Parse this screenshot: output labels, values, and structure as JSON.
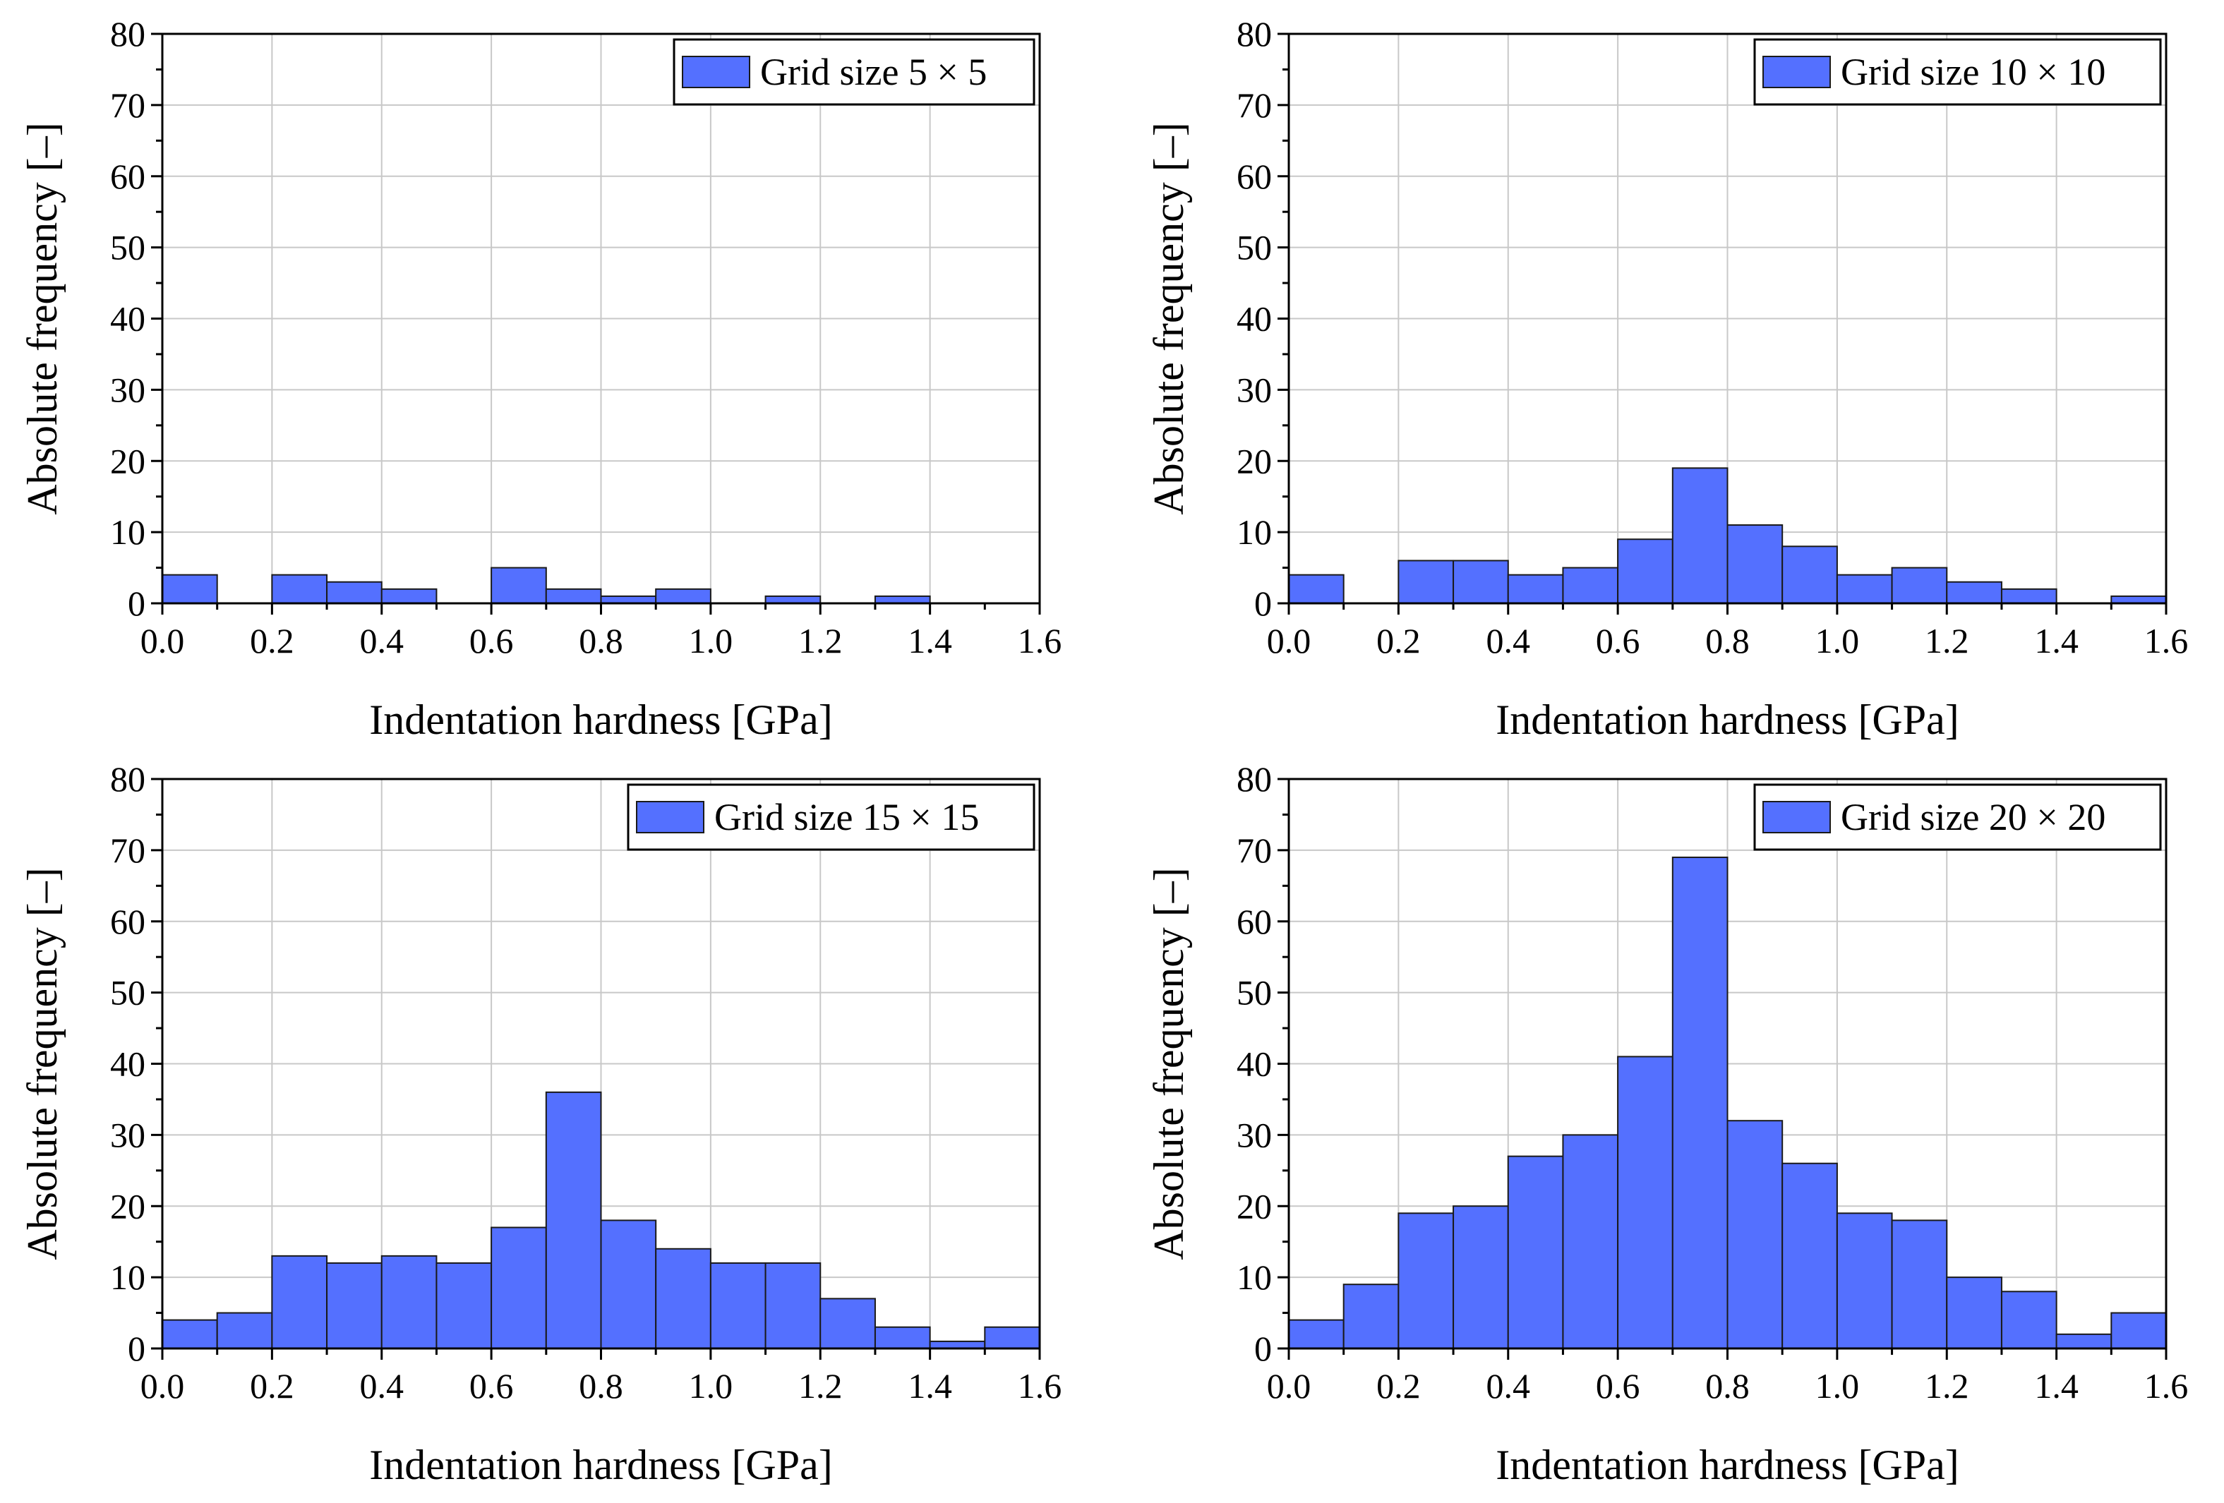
{
  "figure": {
    "bar_color": "#5470ff",
    "bar_edge_color": "#1a1a1a",
    "grid_color": "#c8c8c8"
  },
  "chart_data": [
    {
      "type": "bar",
      "name": "grid-5x5",
      "legend": "Grid size 5 × 5",
      "xlabel": "Indentation hardness [GPa]",
      "ylabel": "Absolute frequency [–]",
      "xlim": [
        0,
        1.6
      ],
      "ylim": [
        0,
        80
      ],
      "xticks": [
        "0.0",
        "0.2",
        "0.4",
        "0.6",
        "0.8",
        "1.0",
        "1.2",
        "1.4",
        "1.6"
      ],
      "yticks": [
        "0",
        "10",
        "20",
        "30",
        "40",
        "50",
        "60",
        "70",
        "80"
      ],
      "bin_width": 0.1,
      "bin_starts": [
        0.0,
        0.1,
        0.2,
        0.3,
        0.4,
        0.5,
        0.6,
        0.7,
        0.8,
        0.9,
        1.0,
        1.1,
        1.2,
        1.3,
        1.4,
        1.5
      ],
      "values": [
        4,
        0,
        4,
        3,
        2,
        0,
        5,
        2,
        1,
        2,
        0,
        1,
        0,
        1,
        0,
        0
      ]
    },
    {
      "type": "bar",
      "name": "grid-10x10",
      "legend": "Grid size 10 × 10",
      "xlabel": "Indentation hardness [GPa]",
      "ylabel": "Absolute frequency [–]",
      "xlim": [
        0,
        1.6
      ],
      "ylim": [
        0,
        80
      ],
      "xticks": [
        "0.0",
        "0.2",
        "0.4",
        "0.6",
        "0.8",
        "1.0",
        "1.2",
        "1.4",
        "1.6"
      ],
      "yticks": [
        "0",
        "10",
        "20",
        "30",
        "40",
        "50",
        "60",
        "70",
        "80"
      ],
      "bin_width": 0.1,
      "bin_starts": [
        0.0,
        0.1,
        0.2,
        0.3,
        0.4,
        0.5,
        0.6,
        0.7,
        0.8,
        0.9,
        1.0,
        1.1,
        1.2,
        1.3,
        1.4,
        1.5
      ],
      "values": [
        4,
        0,
        6,
        6,
        4,
        5,
        9,
        19,
        11,
        8,
        4,
        5,
        3,
        2,
        0,
        1
      ]
    },
    {
      "type": "bar",
      "name": "grid-15x15",
      "legend": "Grid size 15 × 15",
      "xlabel": "Indentation hardness [GPa]",
      "ylabel": "Absolute frequency [–]",
      "xlim": [
        0,
        1.6
      ],
      "ylim": [
        0,
        80
      ],
      "xticks": [
        "0.0",
        "0.2",
        "0.4",
        "0.6",
        "0.8",
        "1.0",
        "1.2",
        "1.4",
        "1.6"
      ],
      "yticks": [
        "0",
        "10",
        "20",
        "30",
        "40",
        "50",
        "60",
        "70",
        "80"
      ],
      "bin_width": 0.1,
      "bin_starts": [
        0.0,
        0.1,
        0.2,
        0.3,
        0.4,
        0.5,
        0.6,
        0.7,
        0.8,
        0.9,
        1.0,
        1.1,
        1.2,
        1.3,
        1.4,
        1.5
      ],
      "values": [
        4,
        5,
        13,
        12,
        13,
        12,
        17,
        36,
        18,
        14,
        12,
        12,
        7,
        3,
        1,
        3
      ]
    },
    {
      "type": "bar",
      "name": "grid-20x20",
      "legend": "Grid size 20 × 20",
      "xlabel": "Indentation hardness [GPa]",
      "ylabel": "Absolute frequency [–]",
      "xlim": [
        0,
        1.6
      ],
      "ylim": [
        0,
        80
      ],
      "xticks": [
        "0.0",
        "0.2",
        "0.4",
        "0.6",
        "0.8",
        "1.0",
        "1.2",
        "1.4",
        "1.6"
      ],
      "yticks": [
        "0",
        "10",
        "20",
        "30",
        "40",
        "50",
        "60",
        "70",
        "80"
      ],
      "bin_width": 0.1,
      "bin_starts": [
        0.0,
        0.1,
        0.2,
        0.3,
        0.4,
        0.5,
        0.6,
        0.7,
        0.8,
        0.9,
        1.0,
        1.1,
        1.2,
        1.3,
        1.4,
        1.5
      ],
      "values": [
        4,
        9,
        19,
        20,
        27,
        30,
        41,
        69,
        32,
        26,
        19,
        18,
        10,
        8,
        2,
        5
      ]
    }
  ]
}
